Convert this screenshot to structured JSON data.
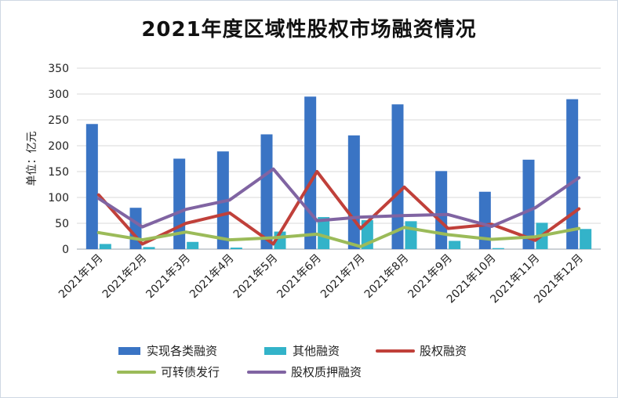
{
  "chart_data": {
    "type": "bar+line",
    "title": "2021年度区域性股权市场融资情况",
    "ylabel": "单位：亿元",
    "xlabel": "",
    "ylim": [
      0,
      350
    ],
    "yticks": [
      0,
      50,
      100,
      150,
      200,
      250,
      300,
      350
    ],
    "grid": true,
    "legend_position": "bottom",
    "categories": [
      "2021年1月",
      "2021年2月",
      "2021年3月",
      "2021年4月",
      "2021年5月",
      "2021年6月",
      "2021年7月",
      "2021年8月",
      "2021年9月",
      "2021年10月",
      "2021年11月",
      "2021年12月"
    ],
    "series": [
      {
        "name": "实现各类融资",
        "type": "bar",
        "color": "#3a74c4",
        "values": [
          242,
          80,
          175,
          189,
          222,
          295,
          220,
          280,
          151,
          111,
          173,
          290
        ]
      },
      {
        "name": "其他融资",
        "type": "bar",
        "color": "#33b3c9",
        "values": [
          10,
          4,
          14,
          3,
          34,
          62,
          56,
          54,
          16,
          2,
          51,
          39
        ]
      },
      {
        "name": "股权融资",
        "type": "line",
        "color": "#c0403a",
        "values": [
          105,
          10,
          50,
          70,
          10,
          150,
          40,
          120,
          40,
          48,
          17,
          78
        ]
      },
      {
        "name": "可转债发行",
        "type": "line",
        "color": "#9bbb59",
        "values": [
          32,
          18,
          33,
          18,
          22,
          29,
          5,
          42,
          28,
          19,
          24,
          40
        ]
      },
      {
        "name": "股权质押融资",
        "type": "line",
        "color": "#8064a2",
        "values": [
          98,
          43,
          77,
          95,
          155,
          55,
          62,
          65,
          67,
          44,
          80,
          138
        ]
      }
    ]
  }
}
